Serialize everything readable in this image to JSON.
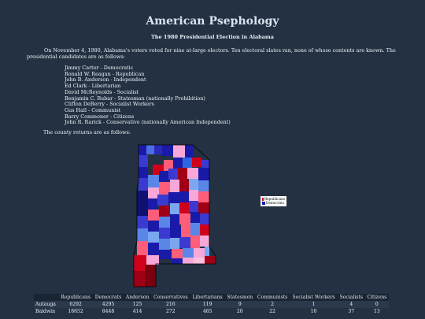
{
  "page": {
    "title": "American Psephology",
    "subtitle": "The 1980 Presidential Election in Alabama",
    "intro": "On November 4, 1980, Alabama's voters voted for nine at-large electors. Ten electoral slates ran, none of whose contents are known. The presidential candidates are as follows:",
    "candidates": [
      "Jimmy Carter - Democratic",
      "Ronald W. Reagan - Republican",
      "John B. Anderson - Independent",
      "Ed Clark - Libertarian",
      "David McReynolds - Socialist",
      "Benjamin C. Bubar - Statesman (nationally Prohibition)",
      "Clifton DeBerry - Socialist Workers",
      "Gus Hall - Communist",
      "Barry Commoner - Citizens",
      "John R. Rarick - Conservative (nationally American Independent)"
    ],
    "county_intro": "The county returns are as follows:"
  },
  "legend": {
    "items": [
      {
        "label": "Republicans",
        "color": "#d0021b"
      },
      {
        "label": "Democrats",
        "color": "#1a1aa8"
      }
    ]
  },
  "table": {
    "headers": [
      "",
      "Republicans",
      "Democrats",
      "Anderson",
      "Conservatives",
      "Libertarians",
      "Statesmen",
      "Communists",
      "Socialist Workers",
      "Socialists",
      "Citizens"
    ],
    "rows": [
      [
        "Autauga",
        "6292",
        "4295",
        "125",
        "216",
        "119",
        "9",
        "2",
        "1",
        "4",
        "0"
      ],
      [
        "Baldwin",
        "18652",
        "8448",
        "414",
        "272",
        "465",
        "20",
        "22",
        "10",
        "37",
        "13"
      ]
    ]
  }
}
